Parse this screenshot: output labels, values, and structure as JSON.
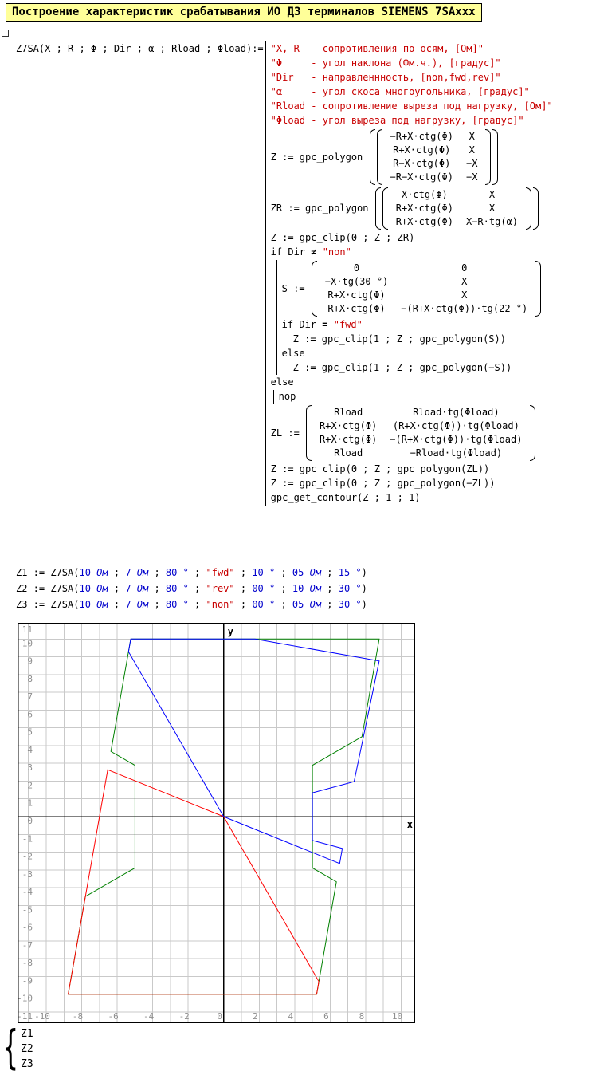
{
  "title": "Построение характеристик срабатывания ИО ДЗ терминалов SIEMENS 7SAxxx",
  "signature": {
    "text": "Z7SA(X ; R ; Φ ; Dir ; α ; Rload ; Φload):="
  },
  "program": {
    "lines": [
      {
        "parts": [
          {
            "t": "\"X, R  - сопротивления по осям, [Ом]\"",
            "c": "r"
          }
        ]
      },
      {
        "parts": [
          {
            "t": "\"Φ     - угол наклона (Фм.ч.), [градус]\"",
            "c": "r"
          }
        ]
      },
      {
        "parts": [
          {
            "t": "\"Dir   - направленнность, [non,fwd,rev]\"",
            "c": "r"
          }
        ]
      },
      {
        "parts": [
          {
            "t": "\"α     - угол скоса многоугольника, [градус]\"",
            "c": "r"
          }
        ]
      },
      {
        "parts": [
          {
            "t": "\"Rload - сопротивление выреза под нагрузку, [Ом]\"",
            "c": "r"
          }
        ]
      },
      {
        "parts": [
          {
            "t": "\"Φload - угол выреза под нагрузку, [градус]\"",
            "c": "r"
          }
        ]
      },
      {
        "pre": [
          {
            "t": "Z := gpc_polygon ",
            "c": "k"
          }
        ],
        "fn": true,
        "matrix": [
          [
            "−R+X·ctg(Φ)",
            "X"
          ],
          [
            "R+X·ctg(Φ)",
            "X"
          ],
          [
            "R−X·ctg(Φ)",
            "−X"
          ],
          [
            "−R−X·ctg(Φ)",
            "−X"
          ]
        ]
      },
      {
        "pre": [
          {
            "t": "ZR := gpc_polygon ",
            "c": "k"
          }
        ],
        "fn": true,
        "matrix": [
          [
            "X·ctg(Φ)",
            "X"
          ],
          [
            "R+X·ctg(Φ)",
            "X"
          ],
          [
            "R+X·ctg(Φ)",
            "X−R·tg(α)"
          ]
        ]
      },
      {
        "parts": [
          {
            "t": "Z := gpc_clip(0 ; Z ; ZR)",
            "c": "k"
          }
        ]
      },
      {
        "parts": [
          {
            "t": "if Dir ≠ ",
            "c": "k"
          },
          {
            "t": "\"non\"",
            "c": "r"
          }
        ]
      },
      {
        "group": [
          {
            "pre": [
              {
                "t": "S := ",
                "c": "k"
              }
            ],
            "fn": false,
            "matrix": [
              [
                "0",
                "0"
              ],
              [
                "−X·tg(30 °)",
                "X"
              ],
              [
                "R+X·ctg(Φ)",
                "X"
              ],
              [
                "R+X·ctg(Φ)",
                "−(R+X·ctg(Φ))·tg(22 °)"
              ]
            ]
          },
          {
            "parts": [
              {
                "t": "if Dir ",
                "c": "k"
              },
              {
                "t": "=",
                "c": "kb"
              },
              {
                "t": " ",
                "c": "k"
              },
              {
                "t": "\"fwd\"",
                "c": "r"
              }
            ]
          },
          {
            "ind": 14,
            "parts": [
              {
                "t": "Z := gpc_clip(1 ; Z ; gpc_polygon(S))",
                "c": "k"
              }
            ]
          },
          {
            "parts": [
              {
                "t": "else",
                "c": "k"
              }
            ]
          },
          {
            "ind": 14,
            "parts": [
              {
                "t": "Z := gpc_clip(1 ; Z ; gpc_polygon(−S))",
                "c": "k"
              }
            ]
          }
        ]
      },
      {
        "parts": [
          {
            "t": "else",
            "c": "k"
          }
        ]
      },
      {
        "ind": 3,
        "group": [
          {
            "parts": [
              {
                "t": "nop",
                "c": "k"
              }
            ]
          }
        ]
      },
      {
        "pre": [
          {
            "t": "ZL := ",
            "c": "k"
          }
        ],
        "fn": false,
        "matrix": [
          [
            "Rload",
            "Rload·tg(Φload)"
          ],
          [
            "R+X·ctg(Φ)",
            "(R+X·ctg(Φ))·tg(Φload)"
          ],
          [
            "R+X·ctg(Φ)",
            "−(R+X·ctg(Φ))·tg(Φload)"
          ],
          [
            "Rload",
            "−Rload·tg(Φload)"
          ]
        ]
      },
      {
        "parts": [
          {
            "t": "Z := gpc_clip(0 ; Z ; gpc_polygon(ZL))",
            "c": "k"
          }
        ]
      },
      {
        "parts": [
          {
            "t": "Z := gpc_clip(0 ; Z ; gpc_polygon(−ZL))",
            "c": "k"
          }
        ]
      },
      {
        "parts": [
          {
            "t": "gpc_get_contour(Z ; 1 ; 1)",
            "c": "k"
          }
        ]
      }
    ]
  },
  "calls": [
    [
      {
        "t": "Z1 := Z7SA(",
        "c": "k"
      },
      {
        "t": "10 ",
        "c": "b"
      },
      {
        "t": "Ом",
        "c": "bi"
      },
      {
        "t": " ; ",
        "c": "k"
      },
      {
        "t": "7 ",
        "c": "b"
      },
      {
        "t": "Ом",
        "c": "bi"
      },
      {
        "t": " ; ",
        "c": "k"
      },
      {
        "t": "80 °",
        "c": "b"
      },
      {
        "t": " ; ",
        "c": "k"
      },
      {
        "t": "\"fwd\"",
        "c": "r"
      },
      {
        "t": " ; ",
        "c": "k"
      },
      {
        "t": "10 °",
        "c": "b"
      },
      {
        "t": " ; ",
        "c": "k"
      },
      {
        "t": "05 ",
        "c": "b"
      },
      {
        "t": "Ом",
        "c": "bi"
      },
      {
        "t": " ; ",
        "c": "k"
      },
      {
        "t": "15 °",
        "c": "b"
      },
      {
        "t": ")",
        "c": "k"
      }
    ],
    [
      {
        "t": "Z2 := Z7SA(",
        "c": "k"
      },
      {
        "t": "10 ",
        "c": "b"
      },
      {
        "t": "Ом",
        "c": "bi"
      },
      {
        "t": " ; ",
        "c": "k"
      },
      {
        "t": "7 ",
        "c": "b"
      },
      {
        "t": "Ом",
        "c": "bi"
      },
      {
        "t": " ; ",
        "c": "k"
      },
      {
        "t": "80 °",
        "c": "b"
      },
      {
        "t": " ; ",
        "c": "k"
      },
      {
        "t": "\"rev\"",
        "c": "r"
      },
      {
        "t": " ; ",
        "c": "k"
      },
      {
        "t": "00 °",
        "c": "b"
      },
      {
        "t": " ; ",
        "c": "k"
      },
      {
        "t": "10 ",
        "c": "b"
      },
      {
        "t": "Ом",
        "c": "bi"
      },
      {
        "t": " ; ",
        "c": "k"
      },
      {
        "t": "30 °",
        "c": "b"
      },
      {
        "t": ")",
        "c": "k"
      }
    ],
    [
      {
        "t": "Z3 := Z7SA(",
        "c": "k"
      },
      {
        "t": "10 ",
        "c": "b"
      },
      {
        "t": "Ом",
        "c": "bi"
      },
      {
        "t": " ; ",
        "c": "k"
      },
      {
        "t": "7 ",
        "c": "b"
      },
      {
        "t": "Ом",
        "c": "bi"
      },
      {
        "t": " ; ",
        "c": "k"
      },
      {
        "t": "80 °",
        "c": "b"
      },
      {
        "t": " ; ",
        "c": "k"
      },
      {
        "t": "\"non\"",
        "c": "r"
      },
      {
        "t": " ; ",
        "c": "k"
      },
      {
        "t": "00 °",
        "c": "b"
      },
      {
        "t": " ; ",
        "c": "k"
      },
      {
        "t": "05 ",
        "c": "b"
      },
      {
        "t": "Ом",
        "c": "bi"
      },
      {
        "t": " ; ",
        "c": "k"
      },
      {
        "t": "30 °",
        "c": "b"
      },
      {
        "t": ")",
        "c": "k"
      }
    ]
  ],
  "chart_data": {
    "type": "line",
    "x_label": "x",
    "y_label": "y",
    "x_range": [
      -11.617,
      10.787
    ],
    "y_range": [
      -11.63,
      10.911
    ],
    "grid": {
      "x": [
        -11,
        10
      ],
      "y": [
        -11,
        10
      ]
    },
    "x_ticks": [
      -10,
      -8,
      -6,
      -4,
      -2,
      0,
      2,
      4,
      6,
      8,
      10
    ],
    "y_ticks": [
      11,
      10,
      9,
      8,
      7,
      6,
      5,
      4,
      3,
      2,
      1,
      0,
      -1,
      -2,
      -3,
      -4,
      -5,
      -6,
      -7,
      -8,
      -9,
      -10,
      -11
    ],
    "colors": {
      "grid": "#c9c9c9",
      "axis": "#000000",
      "tick": "#8f8f8f",
      "border": "#000000"
    },
    "legend_position": "bottom-left",
    "series": [
      {
        "name": "Z3",
        "color": "#008000",
        "points": [
          [
            -5.237,
            10
          ],
          [
            8.763,
            10
          ],
          [
            7.794,
            4.501
          ],
          [
            5,
            2.887
          ],
          [
            5,
            -2.887
          ],
          [
            6.353,
            -3.668
          ],
          [
            5.237,
            -10
          ],
          [
            -8.763,
            -10
          ],
          [
            -7.794,
            -4.501
          ],
          [
            -5,
            -2.887
          ],
          [
            -5,
            2.887
          ],
          [
            -6.353,
            3.668
          ],
          [
            -5.237,
            10
          ]
        ]
      },
      {
        "name": "Z2",
        "color": "#ff0000",
        "points": [
          [
            0,
            0
          ],
          [
            -6.534,
            2.64
          ],
          [
            -8.763,
            -10
          ],
          [
            5.237,
            -10
          ],
          [
            5.362,
            -9.287
          ],
          [
            0,
            0
          ]
        ]
      },
      {
        "name": "Z1",
        "color": "#0000ff",
        "points": [
          [
            0,
            0
          ],
          [
            -5.362,
            9.287
          ],
          [
            -5.237,
            10
          ],
          [
            1.763,
            10
          ],
          [
            8.763,
            8.766
          ],
          [
            7.347,
            1.969
          ],
          [
            5,
            1.343
          ],
          [
            5,
            -1.343
          ],
          [
            6.684,
            -1.791
          ],
          [
            6.535,
            -2.64
          ],
          [
            0,
            0
          ]
        ]
      }
    ]
  },
  "legend": {
    "brace": "{",
    "items": [
      "Z1",
      "Z2",
      "Z3"
    ]
  }
}
